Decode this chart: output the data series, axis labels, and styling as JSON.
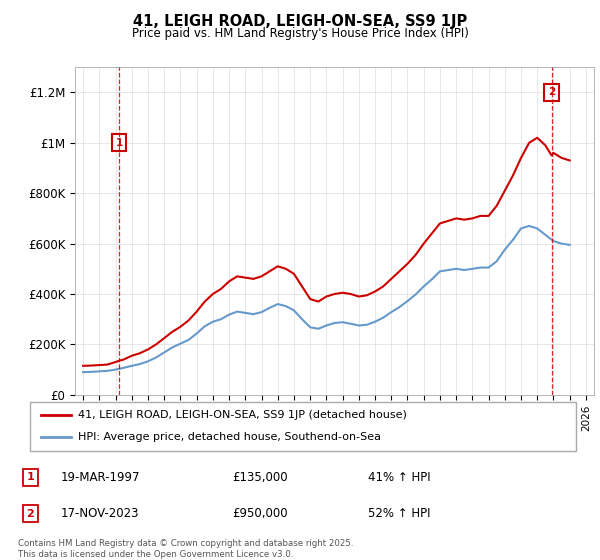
{
  "title": "41, LEIGH ROAD, LEIGH-ON-SEA, SS9 1JP",
  "subtitle": "Price paid vs. HM Land Registry's House Price Index (HPI)",
  "ylabel_ticks": [
    "£0",
    "£200K",
    "£400K",
    "£600K",
    "£800K",
    "£1M",
    "£1.2M"
  ],
  "ytick_values": [
    0,
    200000,
    400000,
    600000,
    800000,
    1000000,
    1200000
  ],
  "ylim": [
    0,
    1300000
  ],
  "xlim_start": 1994.5,
  "xlim_end": 2026.5,
  "legend_line1": "41, LEIGH ROAD, LEIGH-ON-SEA, SS9 1JP (detached house)",
  "legend_line2": "HPI: Average price, detached house, Southend-on-Sea",
  "color_red": "#cc0000",
  "color_blue": "#6699cc",
  "marker1_date": "19-MAR-1997",
  "marker1_price": "£135,000",
  "marker1_hpi": "41% ↑ HPI",
  "marker2_date": "17-NOV-2023",
  "marker2_price": "£950,000",
  "marker2_hpi": "52% ↑ HPI",
  "footer": "Contains HM Land Registry data © Crown copyright and database right 2025.\nThis data is licensed under the Open Government Licence v3.0.",
  "transaction1_year": 1997.21,
  "transaction1_value": 135000,
  "transaction2_year": 2023.88,
  "transaction2_value": 950000,
  "hpi_red_x": [
    1995.0,
    1995.5,
    1996.0,
    1996.5,
    1997.0,
    1997.21,
    1997.5,
    1998.0,
    1998.5,
    1999.0,
    1999.5,
    2000.0,
    2000.5,
    2001.0,
    2001.5,
    2002.0,
    2002.5,
    2003.0,
    2003.5,
    2004.0,
    2004.5,
    2005.0,
    2005.5,
    2006.0,
    2006.5,
    2007.0,
    2007.5,
    2008.0,
    2008.5,
    2009.0,
    2009.5,
    2010.0,
    2010.5,
    2011.0,
    2011.5,
    2012.0,
    2012.5,
    2013.0,
    2013.5,
    2014.0,
    2014.5,
    2015.0,
    2015.5,
    2016.0,
    2016.5,
    2017.0,
    2017.5,
    2018.0,
    2018.5,
    2019.0,
    2019.5,
    2020.0,
    2020.5,
    2021.0,
    2021.5,
    2022.0,
    2022.5,
    2023.0,
    2023.5,
    2023.88,
    2024.0,
    2024.5,
    2025.0
  ],
  "hpi_red_y": [
    115000,
    116000,
    118000,
    120000,
    130000,
    135000,
    140000,
    155000,
    165000,
    180000,
    200000,
    225000,
    250000,
    270000,
    295000,
    330000,
    370000,
    400000,
    420000,
    450000,
    470000,
    465000,
    460000,
    470000,
    490000,
    510000,
    500000,
    480000,
    430000,
    380000,
    370000,
    390000,
    400000,
    405000,
    400000,
    390000,
    395000,
    410000,
    430000,
    460000,
    490000,
    520000,
    555000,
    600000,
    640000,
    680000,
    690000,
    700000,
    695000,
    700000,
    710000,
    710000,
    750000,
    810000,
    870000,
    940000,
    1000000,
    1020000,
    990000,
    950000,
    960000,
    940000,
    930000
  ],
  "hpi_blue_x": [
    1995.0,
    1995.5,
    1996.0,
    1996.5,
    1997.0,
    1997.5,
    1998.0,
    1998.5,
    1999.0,
    1999.5,
    2000.0,
    2000.5,
    2001.0,
    2001.5,
    2002.0,
    2002.5,
    2003.0,
    2003.5,
    2004.0,
    2004.5,
    2005.0,
    2005.5,
    2006.0,
    2006.5,
    2007.0,
    2007.5,
    2008.0,
    2008.5,
    2009.0,
    2009.5,
    2010.0,
    2010.5,
    2011.0,
    2011.5,
    2012.0,
    2012.5,
    2013.0,
    2013.5,
    2014.0,
    2014.5,
    2015.0,
    2015.5,
    2016.0,
    2016.5,
    2017.0,
    2017.5,
    2018.0,
    2018.5,
    2019.0,
    2019.5,
    2020.0,
    2020.5,
    2021.0,
    2021.5,
    2022.0,
    2022.5,
    2023.0,
    2023.5,
    2024.0,
    2024.5,
    2025.0
  ],
  "hpi_blue_y": [
    90000,
    91000,
    93000,
    95000,
    100000,
    107000,
    115000,
    122000,
    133000,
    148000,
    168000,
    188000,
    203000,
    218000,
    243000,
    272000,
    290000,
    300000,
    318000,
    330000,
    325000,
    320000,
    328000,
    345000,
    360000,
    352000,
    335000,
    300000,
    268000,
    262000,
    275000,
    285000,
    288000,
    282000,
    275000,
    278000,
    290000,
    306000,
    328000,
    348000,
    372000,
    398000,
    430000,
    458000,
    490000,
    495000,
    500000,
    495000,
    500000,
    505000,
    505000,
    530000,
    576000,
    615000,
    660000,
    670000,
    660000,
    635000,
    610000,
    600000,
    595000
  ]
}
